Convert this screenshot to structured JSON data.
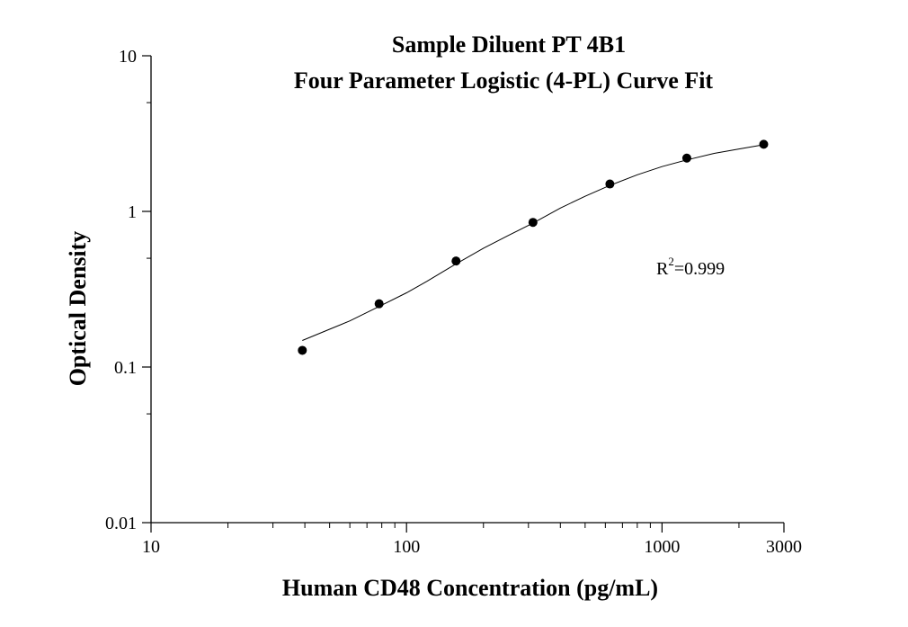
{
  "chart_data": {
    "type": "scatter",
    "title": [
      "Sample Diluent PT 4B1",
      "Four Parameter Logistic (4-PL) Curve Fit"
    ],
    "xlabel": "Human CD48 Concentration (pg/mL)",
    "ylabel": "Optical Density",
    "x_scale": "log",
    "y_scale": "log",
    "xlim": [
      10,
      3000
    ],
    "ylim": [
      0.01,
      10
    ],
    "x_tick_labels": [
      "10",
      "100",
      "1000",
      "3000"
    ],
    "y_tick_labels": [
      "0.01",
      "0.1",
      "1",
      "10"
    ],
    "grid": false,
    "x": [
      39.1,
      78.1,
      156.25,
      312.5,
      625,
      1250,
      2500
    ],
    "y": [
      0.128,
      0.255,
      0.48,
      0.85,
      1.5,
      2.2,
      2.7
    ],
    "fit_curve": {
      "model": "4-PL",
      "x": [
        39.1,
        50,
        60,
        78.1,
        100,
        120,
        156.25,
        200,
        250,
        312.5,
        400,
        500,
        625,
        800,
        1000,
        1250,
        1600,
        2000,
        2500
      ],
      "y": [
        0.148,
        0.175,
        0.198,
        0.245,
        0.3,
        0.355,
        0.46,
        0.58,
        0.7,
        0.84,
        1.05,
        1.25,
        1.47,
        1.72,
        1.94,
        2.14,
        2.36,
        2.52,
        2.68
      ]
    },
    "annotation": {
      "r_symbol": "R",
      "sup": "2",
      "value": "=0.999"
    }
  }
}
